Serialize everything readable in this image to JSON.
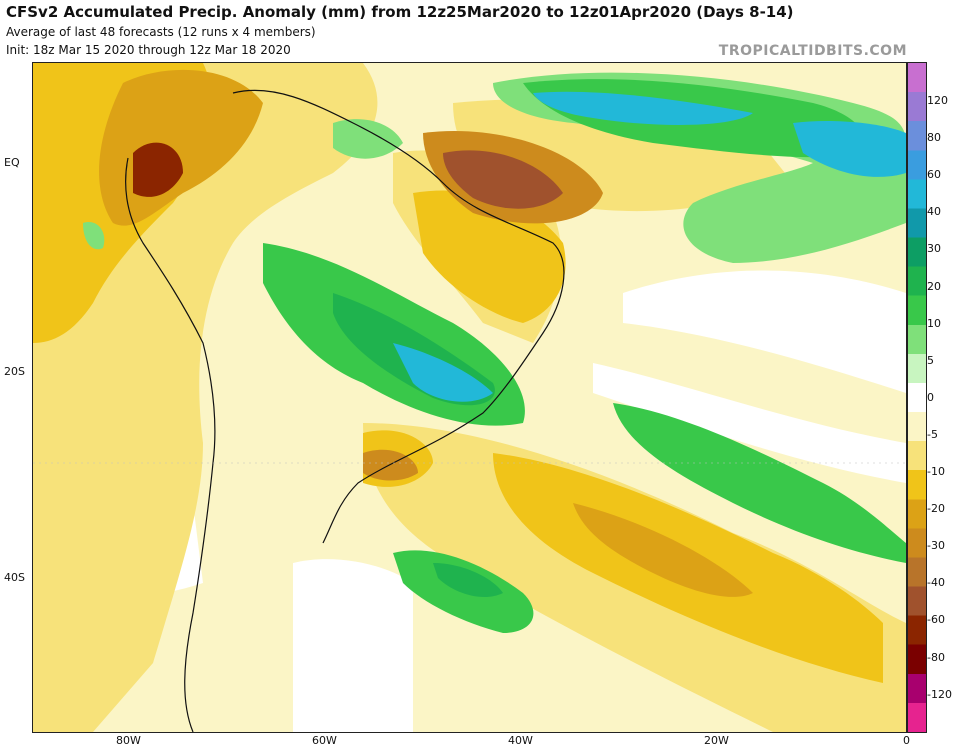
{
  "header": {
    "title": "CFSv2 Accumulated Precip. Anomaly (mm) from 12z25Mar2020 to 12z01Apr2020 (Days 8-14)",
    "subtitle1": "Average of last 48 forecasts (12 runs x 4 members)",
    "subtitle2": "Init: 18z Mar 15 2020 through 12z Mar 18 2020",
    "credit": "TROPICALTIDBITS.COM"
  },
  "axes": {
    "lat_labels": [
      "EQ",
      "20S",
      "40S"
    ],
    "lon_labels": [
      "80W",
      "60W",
      "40W",
      "20W",
      "0"
    ]
  },
  "colorbar": {
    "labels": [
      "120",
      "80",
      "60",
      "40",
      "30",
      "20",
      "10",
      "5",
      "0",
      "-5",
      "-10",
      "-20",
      "-30",
      "-40",
      "-60",
      "-80",
      "-120"
    ],
    "colors": [
      "#e6238f",
      "#a8006e",
      "#7a0000",
      "#8b2500",
      "#a0522d",
      "#b8742a",
      "#cd8b1d",
      "#dca216",
      "#f0c419",
      "#f7e27a",
      "#fbf5c6",
      "#ffffff",
      "#c8f5c0",
      "#7fe07a",
      "#39c84a",
      "#1fb34e",
      "#0d9e64",
      "#1199aa",
      "#22b8d8",
      "#3a9ddf",
      "#6b8fdc",
      "#9a7ad4",
      "#c86fd0"
    ]
  }
}
